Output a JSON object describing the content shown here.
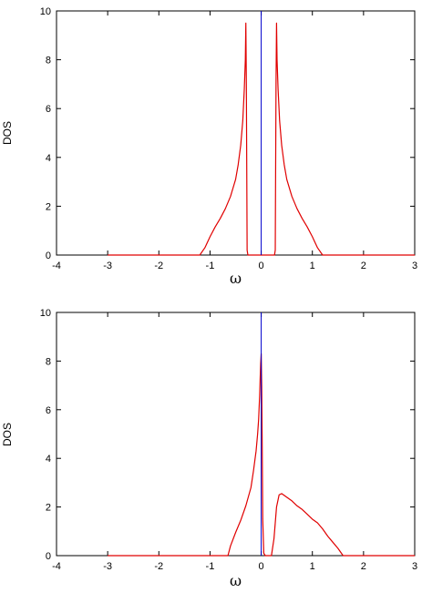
{
  "chart_data": [
    {
      "type": "line",
      "title": "",
      "xlabel": "ω",
      "ylabel": "DOS",
      "xlim": [
        -4,
        3
      ],
      "ylim": [
        0,
        10
      ],
      "xticks": [
        -4,
        -3,
        -2,
        -1,
        0,
        1,
        2,
        3
      ],
      "yticks": [
        0,
        2,
        4,
        6,
        8,
        10
      ],
      "grid": false,
      "colors": {
        "dos": "#e00000",
        "delta": "#0000cc"
      },
      "series": [
        {
          "x": [
            -3,
            -1.2,
            -1.1,
            -1.0,
            -0.9,
            -0.8,
            -0.7,
            -0.6,
            -0.5,
            -0.45,
            -0.4,
            -0.36,
            -0.33,
            -0.31,
            -0.3,
            -0.29,
            -0.28,
            -0.275,
            -0.26,
            -0.2,
            -0.05,
            0.05,
            0.2,
            0.26,
            0.275,
            0.28,
            0.29,
            0.3,
            0.31,
            0.33,
            0.36,
            0.4,
            0.45,
            0.5,
            0.6,
            0.7,
            0.8,
            0.9,
            1.0,
            1.1,
            1.2,
            3
          ],
          "y": [
            0,
            0,
            0.3,
            0.75,
            1.15,
            1.5,
            1.9,
            2.4,
            3.1,
            3.7,
            4.5,
            5.5,
            6.8,
            8.0,
            9.5,
            7.0,
            2.5,
            0.2,
            0,
            0,
            0,
            0,
            0,
            0,
            0.2,
            2.5,
            7.0,
            9.5,
            8.0,
            6.8,
            5.5,
            4.5,
            3.7,
            3.1,
            2.4,
            1.9,
            1.5,
            1.15,
            0.75,
            0.3,
            0,
            0
          ]
        },
        {
          "x": [
            0,
            0
          ],
          "y": [
            0,
            10
          ]
        }
      ]
    },
    {
      "type": "line",
      "title": "",
      "xlabel": "ω",
      "ylabel": "DOS",
      "xlim": [
        -4,
        3
      ],
      "ylim": [
        0,
        10
      ],
      "xticks": [
        -4,
        -3,
        -2,
        -1,
        0,
        1,
        2,
        3
      ],
      "yticks": [
        0,
        2,
        4,
        6,
        8,
        10
      ],
      "grid": false,
      "colors": {
        "dos": "#e00000",
        "delta": "#0000cc"
      },
      "series": [
        {
          "x": [
            -3,
            -0.65,
            -0.6,
            -0.5,
            -0.4,
            -0.3,
            -0.2,
            -0.15,
            -0.1,
            -0.07,
            -0.05,
            -0.03,
            -0.02,
            -0.01,
            0.0,
            0.01,
            0.02,
            0.03,
            0.05,
            0.08,
            0.1,
            0.2,
            0.25,
            0.3,
            0.35,
            0.4,
            0.5,
            0.6,
            0.7,
            0.8,
            0.9,
            1.0,
            1.1,
            1.2,
            1.3,
            1.4,
            1.5,
            1.6,
            3
          ],
          "y": [
            0,
            0,
            0.4,
            0.95,
            1.45,
            2.05,
            2.8,
            3.5,
            4.3,
            5.0,
            5.6,
            6.6,
            7.3,
            7.9,
            8.3,
            7.0,
            4.5,
            1.5,
            0.1,
            0,
            0,
            0,
            0.7,
            2.0,
            2.5,
            2.55,
            2.4,
            2.25,
            2.05,
            1.9,
            1.7,
            1.5,
            1.35,
            1.1,
            0.8,
            0.55,
            0.3,
            0,
            0
          ]
        },
        {
          "x": [
            0,
            0
          ],
          "y": [
            0,
            10
          ]
        }
      ]
    }
  ]
}
